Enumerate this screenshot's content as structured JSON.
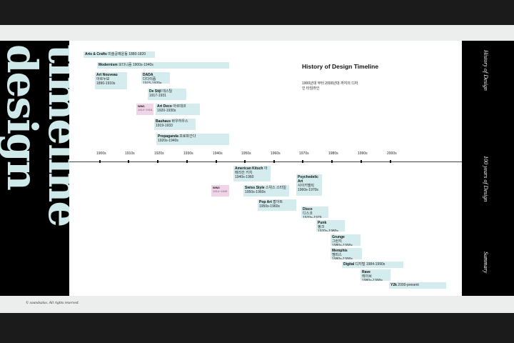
{
  "page": {
    "side_words": [
      "design",
      "timeline"
    ],
    "right_labels": [
      "History of Design",
      "100 years of Design",
      "Summary"
    ],
    "footer": "© soundsalso. All rights reserved.",
    "title": "History of Design Timeline",
    "subtitle": "1900년대 부터 2000년대 까지의 디자인 타임라인"
  },
  "axis": {
    "years": [
      "1900s",
      "1910s",
      "1920s",
      "1930s",
      "1940s",
      "1950s",
      "1960s",
      "1970s",
      "1980s",
      "1990s",
      "2000s"
    ]
  },
  "movements": [
    {
      "name": "Arts & Crafts",
      "kr": "미술공예운동",
      "years": "1880-1820"
    },
    {
      "name": "Modernism",
      "kr": "모더니즘",
      "years": "1900s-1940s"
    },
    {
      "name": "Art Nouveau",
      "kr": "아르누보",
      "years": "1890-1910s"
    },
    {
      "name": "DADA",
      "kr": "다다이즘",
      "years": "1915-1920s"
    },
    {
      "name": "De Stijl",
      "kr": "데스틸",
      "years": "1917-1931"
    },
    {
      "name": "WW1",
      "kr": "",
      "years": "1914~1918"
    },
    {
      "name": "Art Deco",
      "kr": "아르데코",
      "years": "1920-1930s"
    },
    {
      "name": "Bauhaus",
      "kr": "바우하우스",
      "years": "1919-1933"
    },
    {
      "name": "Propaganda",
      "kr": "프로파간다",
      "years": "1920s-1940s"
    },
    {
      "name": "American Kitsch",
      "kr": "아메리칸 키치",
      "years": "1940s-1960"
    },
    {
      "name": "WW2",
      "kr": "",
      "years": "1914~1945"
    },
    {
      "name": "Swiss Style",
      "kr": "스위스 스타일",
      "years": "1950s-1960s"
    },
    {
      "name": "Psychedelic Art",
      "kr": "사이키델릭",
      "years": "1960s-1970s"
    },
    {
      "name": "Pop Art",
      "kr": "팝아트",
      "years": "1950s-1960s"
    },
    {
      "name": "Disco",
      "kr": "디스코",
      "years": "1970s-1979"
    },
    {
      "name": "Punk",
      "kr": "펑크",
      "years": "1970s-1980s"
    },
    {
      "name": "Grunge",
      "kr": "그런지",
      "years": "1980s-1990s"
    },
    {
      "name": "Memphis",
      "kr": "멤피스",
      "years": "1980s-1990s"
    },
    {
      "name": "Digital",
      "kr": "디지털",
      "years": "1984-1990s"
    },
    {
      "name": "Rave",
      "kr": "레이브",
      "years": "1980s-1990s"
    },
    {
      "name": "Y2k",
      "kr": "",
      "years": "2000-present"
    }
  ]
}
